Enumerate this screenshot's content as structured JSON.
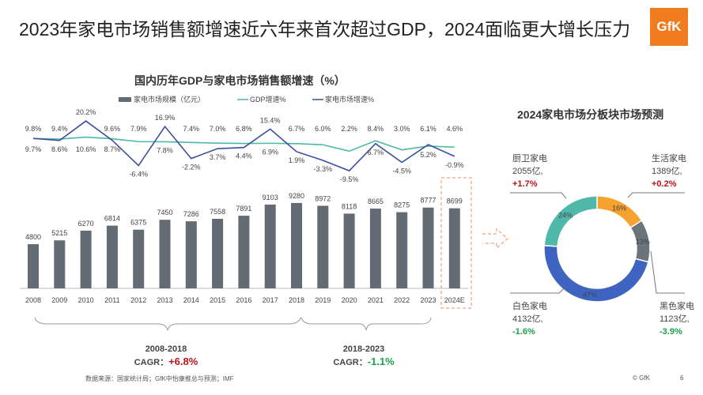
{
  "title": "2023年家电市场销售额增速近六年来首次超过GDP，2024面临更大增长压力",
  "logo": "GfK",
  "chart_data": [
    {
      "type": "bar+line",
      "title": "国内历年GDP与家电市场销售额增速（%）",
      "categories": [
        "2008",
        "2009",
        "2010",
        "2011",
        "2012",
        "2013",
        "2014",
        "2015",
        "2016",
        "2017",
        "2018",
        "2019",
        "2020",
        "2021",
        "2022",
        "2023",
        "2024E"
      ],
      "legend": [
        "家电市场规模（亿元）",
        "GDP增速%",
        "家电市场增速%"
      ],
      "series": [
        {
          "name": "家电市场规模（亿元）",
          "type": "bar",
          "color": "#636b74",
          "values": [
            4800,
            5215,
            6270,
            6814,
            6375,
            7450,
            7286,
            7558,
            7891,
            9103,
            9280,
            8972,
            8118,
            8665,
            8275,
            8777,
            8699
          ]
        },
        {
          "name": "GDP增速%",
          "type": "line",
          "color": "#4cb8a6",
          "values": [
            9.7,
            9.4,
            10.6,
            9.6,
            7.9,
            7.8,
            7.4,
            7.0,
            6.8,
            6.9,
            6.7,
            6.0,
            2.2,
            8.4,
            3.0,
            5.2,
            4.6
          ]
        },
        {
          "name": "家电市场增速%",
          "type": "line",
          "color": "#3a4fa0",
          "values": [
            9.8,
            8.6,
            20.2,
            8.7,
            -6.4,
            16.9,
            -2.2,
            3.7,
            4.4,
            15.4,
            1.9,
            -3.3,
            -9.5,
            6.7,
            -4.5,
            6.1,
            -0.9
          ]
        }
      ]
    },
    {
      "type": "pie",
      "title": "2024家电市场分板块市场预测",
      "slices": [
        {
          "name": "生活家电",
          "pct": 16,
          "value": "1389亿,",
          "growth": "+0.2%",
          "color": "#f7a12e"
        },
        {
          "name": "黑色家电",
          "pct": 13,
          "value": "1123亿,",
          "growth": "-3.9%",
          "color": "#6b737b"
        },
        {
          "name": "白色家电",
          "pct": 47,
          "value": "4132亿,",
          "growth": "-1.6%",
          "color": "#3e63c0"
        },
        {
          "name": "厨卫家电",
          "pct": 24,
          "value": "2055亿,",
          "growth": "+1.7%",
          "color": "#4fb8a8"
        }
      ]
    }
  ],
  "cagr": [
    {
      "period": "2008-2018",
      "label": "CAGR：",
      "value": "+6.8%"
    },
    {
      "period": "2018-2023",
      "label": "CAGR：",
      "value": "-1.1%"
    }
  ],
  "footer": {
    "source": "数据来源：国家统计局；GfK中怡康推总与预测；IMF",
    "copyright": "© GfK",
    "page": "6"
  }
}
